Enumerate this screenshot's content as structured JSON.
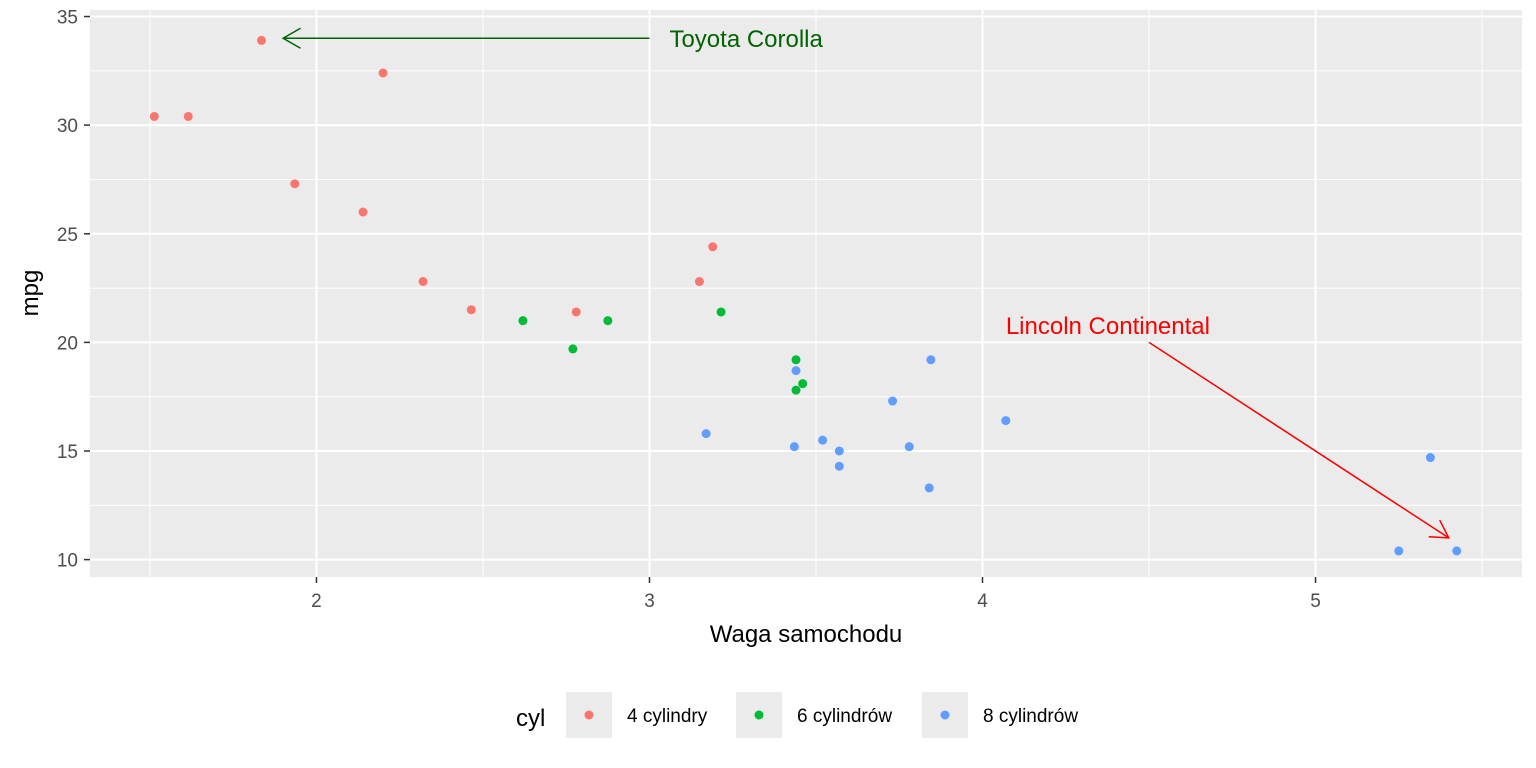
{
  "chart_data": {
    "type": "scatter",
    "xlabel": "Waga samochodu",
    "ylabel": "mpg",
    "xlim": [
      1.32,
      5.62
    ],
    "ylim": [
      9.2,
      35.3
    ],
    "xticks": [
      2,
      3,
      4,
      5
    ],
    "yticks": [
      10,
      15,
      20,
      25,
      30,
      35
    ],
    "grid": true,
    "legend": {
      "title": "cyl",
      "position": "bottom"
    },
    "series": [
      {
        "name": "4 cylindry",
        "color": "#F8766D",
        "points": [
          [
            2.32,
            22.8
          ],
          [
            3.19,
            24.4
          ],
          [
            3.15,
            22.8
          ],
          [
            2.2,
            32.4
          ],
          [
            1.615,
            30.4
          ],
          [
            1.835,
            33.9
          ],
          [
            2.465,
            21.5
          ],
          [
            1.935,
            27.3
          ],
          [
            2.14,
            26.0
          ],
          [
            1.513,
            30.4
          ],
          [
            2.78,
            21.4
          ]
        ]
      },
      {
        "name": "6 cylindrów",
        "color": "#00BA38",
        "points": [
          [
            2.62,
            21.0
          ],
          [
            2.875,
            21.0
          ],
          [
            3.215,
            21.4
          ],
          [
            3.46,
            18.1
          ],
          [
            3.44,
            19.2
          ],
          [
            3.44,
            17.8
          ],
          [
            2.77,
            19.7
          ]
        ]
      },
      {
        "name": "8 cylindrów",
        "color": "#619CFF",
        "points": [
          [
            3.44,
            18.7
          ],
          [
            3.57,
            14.3
          ],
          [
            4.07,
            16.4
          ],
          [
            3.73,
            17.3
          ],
          [
            3.78,
            15.2
          ],
          [
            5.25,
            10.4
          ],
          [
            5.424,
            10.4
          ],
          [
            5.345,
            14.7
          ],
          [
            3.52,
            15.5
          ],
          [
            3.435,
            15.2
          ],
          [
            3.84,
            13.3
          ],
          [
            3.845,
            19.2
          ],
          [
            3.17,
            15.8
          ],
          [
            3.57,
            15.0
          ]
        ]
      }
    ],
    "annotations": [
      {
        "text": "Toyota Corolla",
        "color": "#006400",
        "text_x": 3.06,
        "text_y": 34.0,
        "arrow_from": [
          3.0,
          34.0
        ],
        "arrow_to": [
          1.9,
          34.0
        ]
      },
      {
        "text": "Lincoln Continental",
        "color": "#FF0000",
        "text_x": 4.07,
        "text_y": 20.8,
        "arrow_from": [
          4.5,
          20.0
        ],
        "arrow_to": [
          5.4,
          11.0
        ]
      }
    ]
  }
}
